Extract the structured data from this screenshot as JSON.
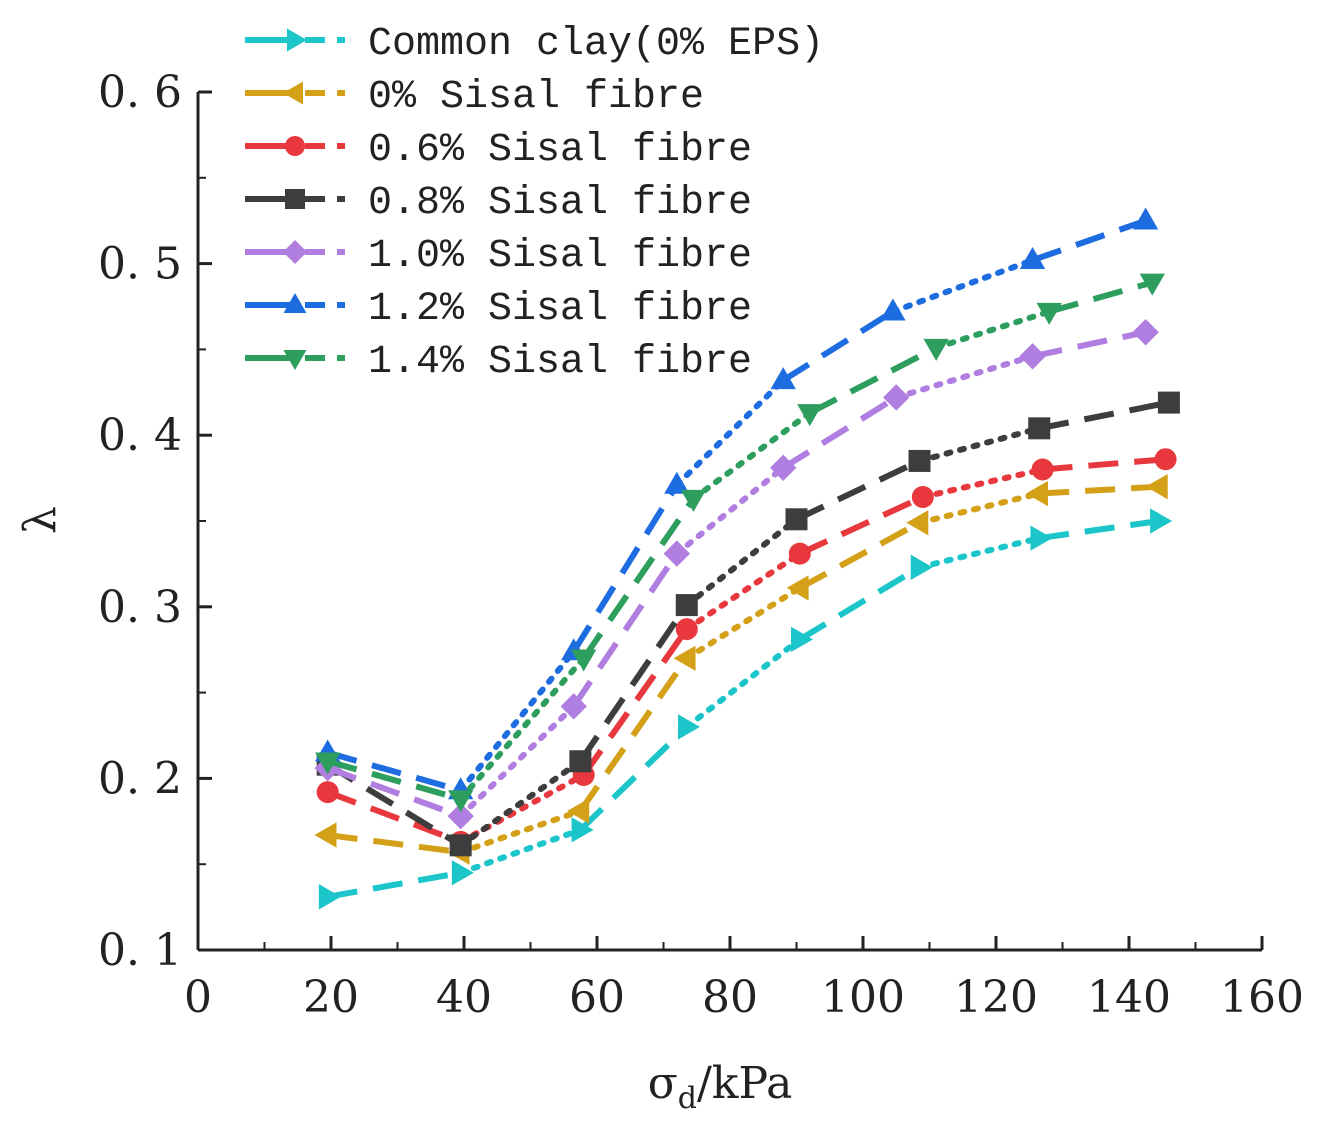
{
  "chart_data": {
    "type": "line",
    "xlabel_main": "σ",
    "xlabel_sub": "d",
    "xlabel_unit": "/kPa",
    "ylabel": "λ",
    "xlim": [
      0,
      160
    ],
    "ylim": [
      0.1,
      0.6
    ],
    "xticks": [
      "0",
      "20",
      "40",
      "60",
      "80",
      "100",
      "120",
      "140",
      "160"
    ],
    "yticks": [
      "0.1",
      "0.2",
      "0.3",
      "0.4",
      "0.5",
      "0.6"
    ],
    "legend_position": "top-left",
    "series": [
      {
        "name": "Common clay(0% EPS)",
        "color": "#1cc5c9",
        "marker": "triangle-right",
        "x": [
          19.5,
          39.5,
          57.5,
          73.5,
          90.5,
          108.5,
          126.5,
          144.5
        ],
        "y": [
          0.131,
          0.145,
          0.17,
          0.23,
          0.281,
          0.323,
          0.34,
          0.35
        ]
      },
      {
        "name": "0%   Sisal fibre",
        "color": "#d4a017",
        "marker": "triangle-left",
        "x": [
          19.5,
          39.5,
          57.5,
          73.5,
          90.5,
          108.5,
          126.5,
          144.5
        ],
        "y": [
          0.167,
          0.157,
          0.181,
          0.27,
          0.311,
          0.349,
          0.366,
          0.37
        ]
      },
      {
        "name": "0.6% Sisal fibre",
        "color": "#e8383d",
        "marker": "circle",
        "x": [
          19.5,
          39.5,
          58.0,
          73.5,
          90.5,
          109.0,
          127.0,
          145.5
        ],
        "y": [
          0.192,
          0.163,
          0.202,
          0.287,
          0.331,
          0.364,
          0.38,
          0.386
        ]
      },
      {
        "name": "0.8% Sisal fibre",
        "color": "#3d3d3d",
        "marker": "square",
        "x": [
          19.5,
          39.5,
          57.5,
          73.5,
          90.0,
          108.5,
          126.5,
          146.0
        ],
        "y": [
          0.208,
          0.161,
          0.21,
          0.301,
          0.351,
          0.385,
          0.404,
          0.419
        ]
      },
      {
        "name": "1.0% Sisal fibre",
        "color": "#b07ee0",
        "marker": "diamond",
        "x": [
          19.5,
          39.5,
          56.5,
          72.0,
          88.0,
          105.0,
          125.5,
          142.5
        ],
        "y": [
          0.206,
          0.178,
          0.242,
          0.331,
          0.381,
          0.422,
          0.446,
          0.46
        ]
      },
      {
        "name": "1.2% Sisal fibre",
        "color": "#1d6ce0",
        "marker": "triangle-up",
        "x": [
          19.5,
          39.5,
          56.5,
          72.0,
          88.0,
          104.5,
          125.5,
          142.5
        ],
        "y": [
          0.215,
          0.193,
          0.274,
          0.371,
          0.432,
          0.472,
          0.502,
          0.525
        ]
      },
      {
        "name": "1.4% Sisal fibre",
        "color": "#2e9e5e",
        "marker": "triangle-down",
        "x": [
          19.5,
          39.5,
          58.0,
          74.5,
          92.0,
          111.0,
          128.0,
          143.5
        ],
        "y": [
          0.21,
          0.188,
          0.27,
          0.363,
          0.413,
          0.451,
          0.472,
          0.489
        ]
      }
    ]
  }
}
